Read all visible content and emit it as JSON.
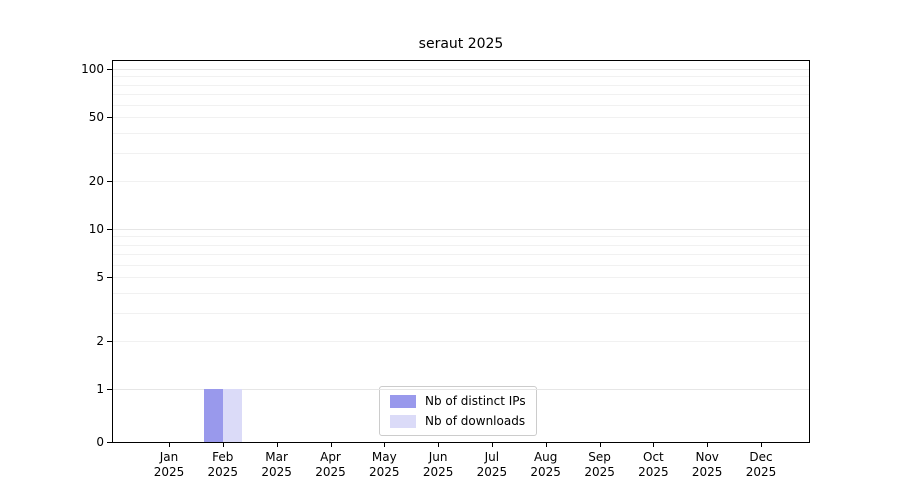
{
  "chart_data": {
    "type": "bar",
    "title": "seraut 2025",
    "categories": [
      "Jan 2025",
      "Feb 2025",
      "Mar 2025",
      "Apr 2025",
      "May 2025",
      "Jun 2025",
      "Jul 2025",
      "Aug 2025",
      "Sep 2025",
      "Oct 2025",
      "Nov 2025",
      "Dec 2025"
    ],
    "series": [
      {
        "name": "Nb of distinct IPs",
        "color": "#9999ec",
        "values": [
          0,
          1,
          0,
          0,
          0,
          0,
          0,
          0,
          0,
          0,
          0,
          0
        ]
      },
      {
        "name": "Nb of downloads",
        "color": "#dbdbf8",
        "values": [
          0,
          1,
          0,
          0,
          0,
          0,
          0,
          0,
          0,
          0,
          0,
          0
        ]
      }
    ],
    "yscale": "symlog",
    "yticks": [
      0,
      1,
      2,
      5,
      10,
      20,
      50,
      100
    ],
    "ylim": [
      0,
      140
    ],
    "grid": true,
    "legend_position": "lower center"
  }
}
